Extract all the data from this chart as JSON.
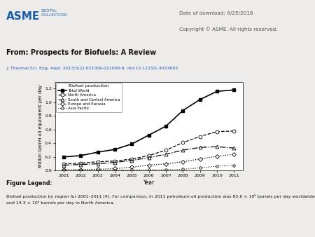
{
  "years": [
    2001,
    2002,
    2003,
    2004,
    2005,
    2006,
    2007,
    2008,
    2009,
    2010,
    2011
  ],
  "total_world": [
    0.2,
    0.22,
    0.27,
    0.31,
    0.39,
    0.52,
    0.65,
    0.88,
    1.04,
    1.16,
    1.18
  ],
  "north_america": [
    0.1,
    0.11,
    0.13,
    0.14,
    0.17,
    0.22,
    0.3,
    0.41,
    0.5,
    0.57,
    0.58
  ],
  "south_central_america": [
    0.08,
    0.09,
    0.1,
    0.12,
    0.15,
    0.19,
    0.24,
    0.3,
    0.34,
    0.35,
    0.33
  ],
  "europe_eurasia": [
    0.01,
    0.015,
    0.02,
    0.03,
    0.05,
    0.08,
    0.1,
    0.13,
    0.17,
    0.21,
    0.24
  ],
  "asia_pacific": [
    0.003,
    0.004,
    0.005,
    0.007,
    0.01,
    0.012,
    0.015,
    0.02,
    0.04,
    0.065,
    0.08
  ],
  "ylabel": "Million barrel oil equivalent per day",
  "xlabel": "Year",
  "ylim": [
    0.0,
    1.3
  ],
  "xlim": [
    2000.5,
    2011.5
  ],
  "yticks": [
    0.0,
    0.2,
    0.4,
    0.6,
    0.8,
    1.0,
    1.2
  ],
  "xticks": [
    2001,
    2002,
    2003,
    2004,
    2005,
    2006,
    2007,
    2008,
    2009,
    2010,
    2011
  ],
  "legend_title": "Biofuel production",
  "legend_entries": [
    "Total World",
    "North America",
    "South and Central America",
    "Europe and Eurasia",
    "Asia Pacific"
  ],
  "header_left_bold": "From: Prospects for Biofuels: A Review",
  "header_sub": "J. Thermal Sci. Eng. Appl. 2013;5(2):021006-021006-9. doi:10.1115/1.4023602",
  "header_right_line1": "Date of download: 6/25/2016",
  "header_right_line2": "Copyright © ASME. All rights reserved.",
  "figure_legend_title": "Figure Legend:",
  "figure_legend_text": "Biofuel production by region for 2001–2011 [4]. For comparison, in 2011 petroleum oil production was 83.6 × 10⁶ barrels per day worldwide and 14.3 × 10⁶ barrels per day in North America.",
  "bg_color": "#edecea",
  "plot_bg": "#ffffff",
  "header_bg": "#dedad6",
  "content_bg": "#edecea",
  "asme_blue": "#1a5ea8",
  "text_gray": "#555555",
  "link_blue": "#2255bb"
}
